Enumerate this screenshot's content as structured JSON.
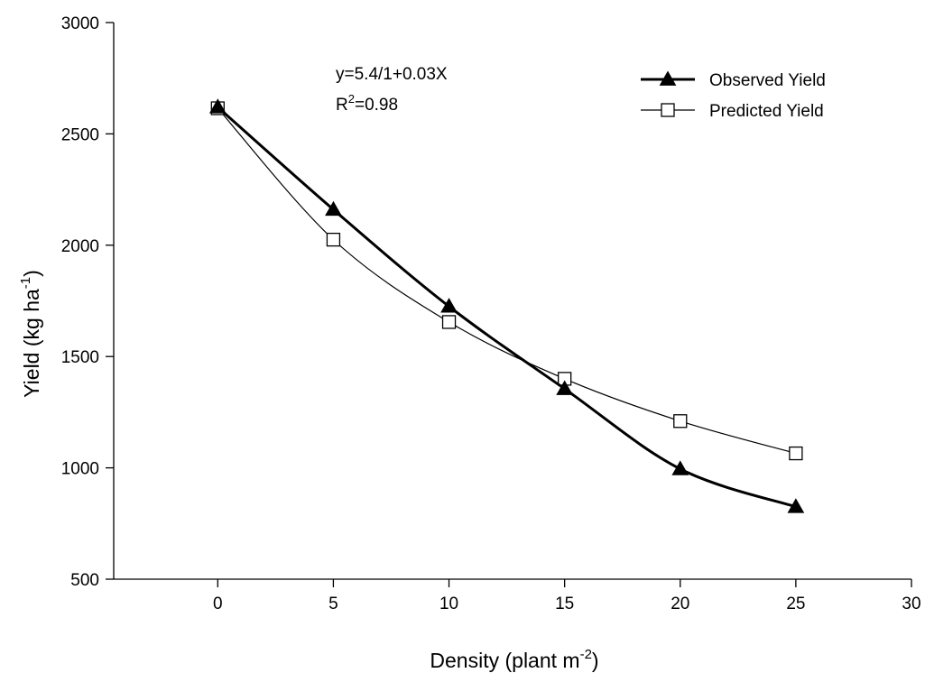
{
  "chart_data": {
    "type": "line",
    "xlabel": "Density (plant m",
    "xlabel_sup": "-2",
    "xlabel_end": ")",
    "ylabel": "Yield (kg ha",
    "ylabel_sup": "-1",
    "ylabel_end": ")",
    "xlim": [
      -4.5,
      30
    ],
    "ylim": [
      500,
      3000
    ],
    "xticks": [
      0,
      5,
      10,
      15,
      20,
      25,
      30
    ],
    "yticks": [
      500,
      1000,
      1500,
      2000,
      2500,
      3000
    ],
    "x": [
      0,
      5,
      10,
      15,
      20,
      25
    ],
    "series": [
      {
        "name": "Observed Yield",
        "marker": "filled-triangle",
        "line": "thick",
        "color": "#000000",
        "values": [
          2620,
          2160,
          1725,
          1355,
          995,
          825
        ]
      },
      {
        "name": "Predicted Yield",
        "marker": "open-square",
        "line": "thin",
        "color": "#000000",
        "values": [
          2615,
          2025,
          1655,
          1400,
          1210,
          1065
        ]
      }
    ],
    "annotations": {
      "equation": "y=5.4/1+0.03X",
      "r2_prefix": "R",
      "r2_sup": "2",
      "r2_value": "=0.98"
    },
    "legend_position": "top-right",
    "grid": false
  }
}
